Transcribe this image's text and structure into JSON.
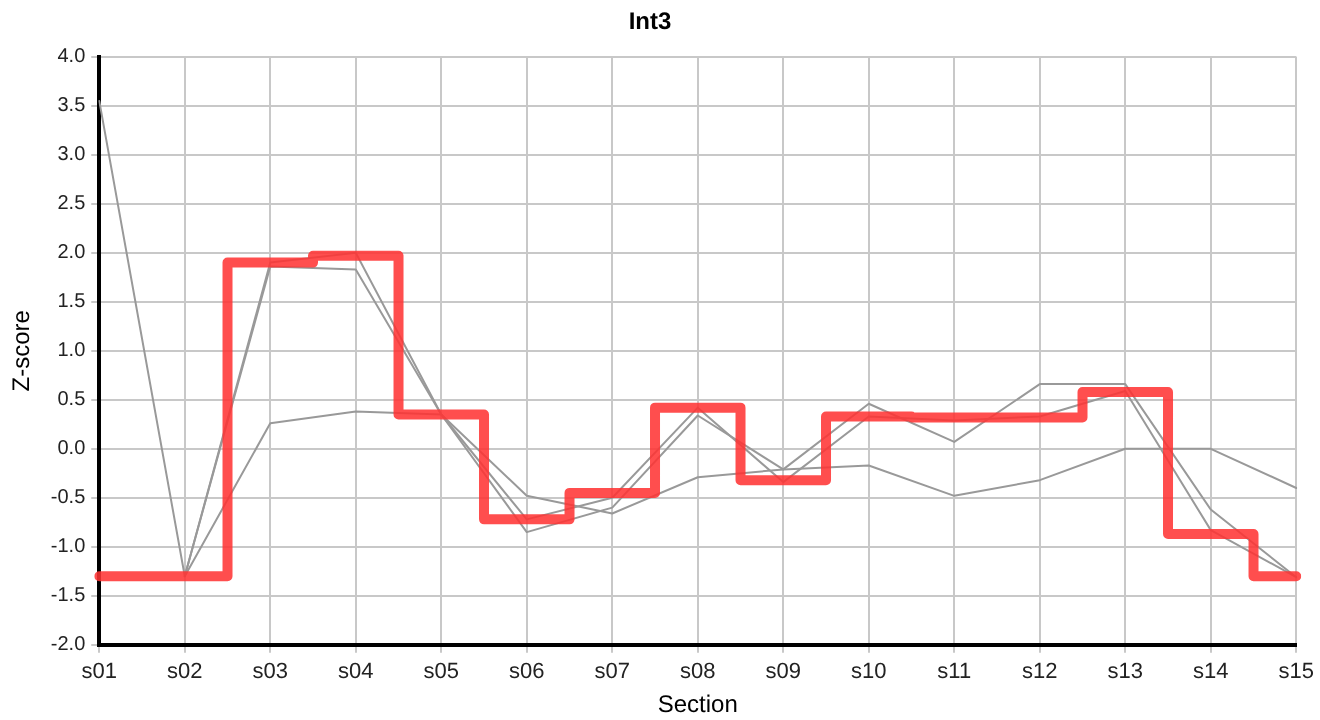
{
  "chart_data": {
    "type": "line",
    "title": "Int3",
    "xlabel": "Section",
    "ylabel": "Z-score",
    "categories": [
      "s01",
      "s02",
      "s03",
      "s04",
      "s05",
      "s06",
      "s07",
      "s08",
      "s09",
      "s10",
      "s11",
      "s12",
      "s13",
      "s14",
      "s15"
    ],
    "series": [
      {
        "color": "#999999",
        "values": [
          3.55,
          -1.3,
          1.86,
          1.83,
          0.35,
          -0.85,
          -0.6,
          0.34,
          -0.21,
          0.46,
          0.07,
          0.66,
          0.66,
          -0.62,
          -1.31
        ]
      },
      {
        "color": "#999999",
        "values": [
          null,
          -1.3,
          0.26,
          0.38,
          0.35,
          -0.48,
          -0.66,
          -0.29,
          -0.21,
          -0.17,
          -0.48,
          -0.32,
          0.0,
          0.0,
          -0.4
        ]
      },
      {
        "color": "#999999",
        "values": [
          null,
          -1.3,
          1.9,
          2.0,
          0.35,
          -0.72,
          -0.5,
          0.42,
          -0.34,
          0.33,
          0.29,
          0.33,
          0.59,
          -0.83,
          -1.31
        ]
      },
      {
        "type": "step",
        "color": "#ff3333",
        "values": [
          -1.3,
          -1.3,
          1.9,
          1.97,
          0.35,
          -0.72,
          -0.45,
          0.42,
          -0.32,
          0.33,
          0.32,
          0.32,
          0.58,
          -0.87,
          -1.3
        ]
      }
    ],
    "ylim": [
      -2,
      4
    ],
    "yticks": [
      {
        "value": -2,
        "label": "-2.0"
      },
      {
        "value": -1.5,
        "label": "-1.5"
      },
      {
        "value": -1,
        "label": "-1.0"
      },
      {
        "value": -0.5,
        "label": "-0.5"
      },
      {
        "value": 0,
        "label": "0.0"
      },
      {
        "value": 0.5,
        "label": "0.5"
      },
      {
        "value": 1,
        "label": "1.0"
      },
      {
        "value": 1.5,
        "label": "1.5"
      },
      {
        "value": 2,
        "label": "2.0"
      },
      {
        "value": 2.5,
        "label": "2.5"
      },
      {
        "value": 3,
        "label": "3.0"
      },
      {
        "value": 3.5,
        "label": "3.5"
      },
      {
        "value": 4,
        "label": "4.0"
      }
    ],
    "grid": true,
    "legend": false,
    "marker": "none"
  }
}
